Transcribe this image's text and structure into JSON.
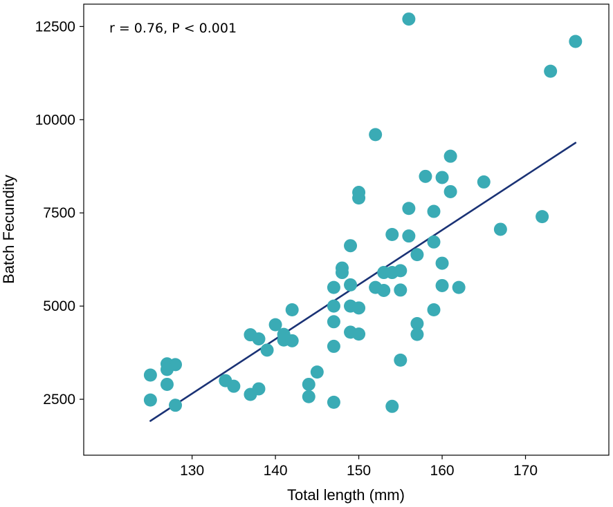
{
  "chart_data": {
    "type": "scatter",
    "title": "",
    "xlabel": "Total length (mm)",
    "ylabel": "Batch Fecundity",
    "xlim": [
      117,
      180
    ],
    "ylim": [
      1000,
      13100
    ],
    "xticks": [
      130,
      140,
      150,
      160,
      170
    ],
    "yticks": [
      2500,
      5000,
      7500,
      10000,
      12500
    ],
    "annotation": "r = 0.76, P < 0.001",
    "grid": false,
    "legend": "none",
    "colors": {
      "points": "#3aabb5",
      "line": "#1a3275",
      "axis": "#000000"
    },
    "fit_line": {
      "x": [
        125,
        176
      ],
      "y": [
        1920,
        9380
      ]
    },
    "points": [
      {
        "x": 125,
        "y": 3150
      },
      {
        "x": 125,
        "y": 2480
      },
      {
        "x": 127,
        "y": 3450
      },
      {
        "x": 128,
        "y": 3430
      },
      {
        "x": 127,
        "y": 3300
      },
      {
        "x": 127,
        "y": 2900
      },
      {
        "x": 128,
        "y": 2340
      },
      {
        "x": 134,
        "y": 3000
      },
      {
        "x": 135,
        "y": 2850
      },
      {
        "x": 137,
        "y": 2630
      },
      {
        "x": 138,
        "y": 2780
      },
      {
        "x": 137,
        "y": 4230
      },
      {
        "x": 138,
        "y": 4120
      },
      {
        "x": 139,
        "y": 3820
      },
      {
        "x": 140,
        "y": 4500
      },
      {
        "x": 141,
        "y": 4240
      },
      {
        "x": 141,
        "y": 4090
      },
      {
        "x": 142,
        "y": 4070
      },
      {
        "x": 142,
        "y": 4900
      },
      {
        "x": 144,
        "y": 2900
      },
      {
        "x": 144,
        "y": 2570
      },
      {
        "x": 145,
        "y": 3230
      },
      {
        "x": 147,
        "y": 2420
      },
      {
        "x": 147,
        "y": 3920
      },
      {
        "x": 147,
        "y": 4580
      },
      {
        "x": 147,
        "y": 5000
      },
      {
        "x": 147,
        "y": 5500
      },
      {
        "x": 148,
        "y": 6020
      },
      {
        "x": 148,
        "y": 5900
      },
      {
        "x": 149,
        "y": 6620
      },
      {
        "x": 149,
        "y": 5570
      },
      {
        "x": 149,
        "y": 5000
      },
      {
        "x": 149,
        "y": 4300
      },
      {
        "x": 150,
        "y": 4950
      },
      {
        "x": 150,
        "y": 4250
      },
      {
        "x": 150,
        "y": 8050
      },
      {
        "x": 150,
        "y": 7900
      },
      {
        "x": 152,
        "y": 9600
      },
      {
        "x": 152,
        "y": 5500
      },
      {
        "x": 153,
        "y": 5420
      },
      {
        "x": 153,
        "y": 5900
      },
      {
        "x": 154,
        "y": 5900
      },
      {
        "x": 154,
        "y": 6920
      },
      {
        "x": 154,
        "y": 2310
      },
      {
        "x": 155,
        "y": 5950
      },
      {
        "x": 155,
        "y": 5430
      },
      {
        "x": 155,
        "y": 3550
      },
      {
        "x": 156,
        "y": 12700
      },
      {
        "x": 156,
        "y": 7620
      },
      {
        "x": 156,
        "y": 6880
      },
      {
        "x": 157,
        "y": 6380
      },
      {
        "x": 157,
        "y": 4530
      },
      {
        "x": 157,
        "y": 4240
      },
      {
        "x": 158,
        "y": 8480
      },
      {
        "x": 159,
        "y": 7540
      },
      {
        "x": 159,
        "y": 6720
      },
      {
        "x": 159,
        "y": 4900
      },
      {
        "x": 160,
        "y": 8450
      },
      {
        "x": 160,
        "y": 6150
      },
      {
        "x": 160,
        "y": 5550
      },
      {
        "x": 161,
        "y": 9020
      },
      {
        "x": 161,
        "y": 8070
      },
      {
        "x": 162,
        "y": 5500
      },
      {
        "x": 165,
        "y": 8330
      },
      {
        "x": 167,
        "y": 7060
      },
      {
        "x": 172,
        "y": 7400
      },
      {
        "x": 173,
        "y": 11300
      },
      {
        "x": 176,
        "y": 12100
      }
    ]
  }
}
